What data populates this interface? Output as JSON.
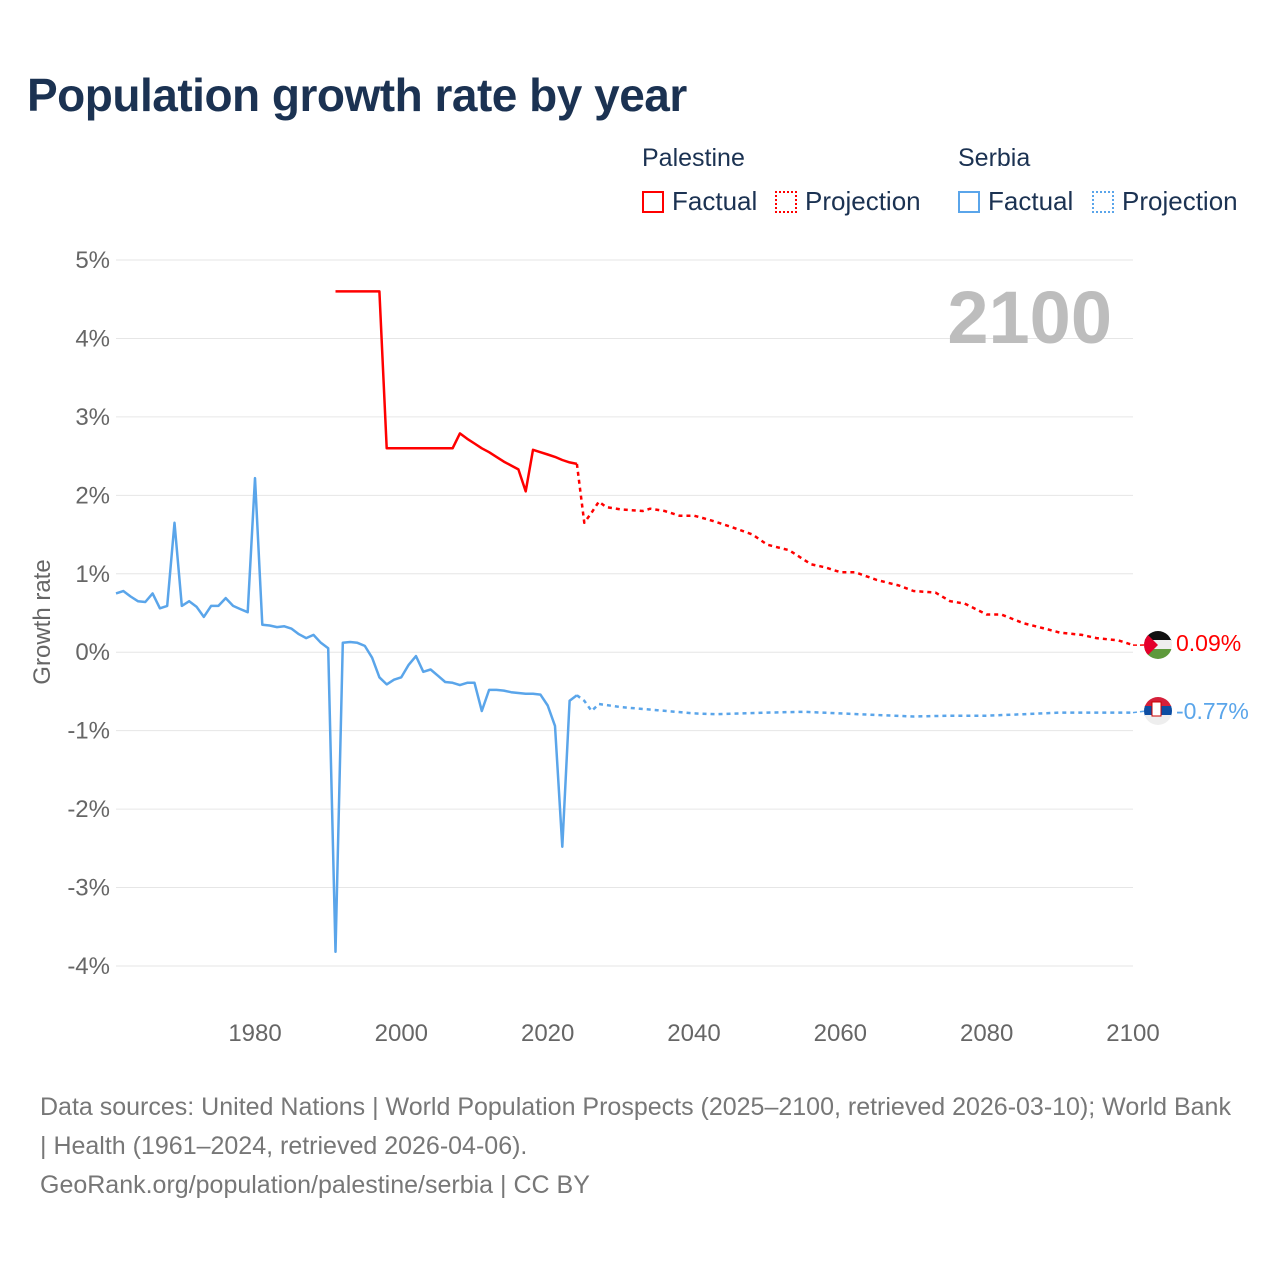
{
  "title": "Population growth rate by year",
  "legend": {
    "groups": [
      {
        "name": "Palestine",
        "factual": "Factual",
        "projection": "Projection",
        "color": "#ff0000"
      },
      {
        "name": "Serbia",
        "factual": "Factual",
        "projection": "Projection",
        "color": "#5aa5ea"
      }
    ]
  },
  "year_watermark": "2100",
  "end_labels": {
    "palestine": "0.09%",
    "serbia": "-0.77%"
  },
  "footer": {
    "sources": "Data sources: United Nations | World Population Prospects (2025–2100, retrieved 2026-03-10); World Bank | Health (1961–2024, retrieved 2026-04-06).",
    "credit": "GeoRank.org/population/palestine/serbia | CC BY"
  },
  "chart_data": {
    "type": "line",
    "title": "Population growth rate by year",
    "xlabel": "",
    "ylabel": "Growth rate",
    "xlim": [
      1961,
      2100
    ],
    "ylim": [
      -4.5,
      5
    ],
    "x_ticks": [
      1980,
      2000,
      2020,
      2040,
      2060,
      2080,
      2100
    ],
    "y_ticks": [
      5,
      4,
      3,
      2,
      1,
      0,
      -1,
      -2,
      -3,
      -4
    ],
    "y_tick_labels": [
      "5%",
      "4%",
      "3%",
      "2%",
      "1%",
      "0%",
      "-1%",
      "-2%",
      "-3%",
      "-4%"
    ],
    "grid": true,
    "legend_position": "top-right",
    "series": [
      {
        "name": "Palestine Factual",
        "color": "#ff0000",
        "style": "solid",
        "x": [
          1991,
          1992,
          1993,
          1994,
          1995,
          1996,
          1997,
          1998,
          1999,
          2000,
          2001,
          2002,
          2003,
          2004,
          2005,
          2006,
          2007,
          2008,
          2009,
          2010,
          2011,
          2012,
          2013,
          2014,
          2015,
          2016,
          2017,
          2018,
          2019,
          2020,
          2021,
          2022,
          2023,
          2024
        ],
        "y": [
          4.6,
          4.6,
          4.6,
          4.6,
          4.6,
          4.6,
          4.6,
          2.6,
          2.6,
          2.6,
          2.6,
          2.6,
          2.6,
          2.6,
          2.6,
          2.6,
          2.6,
          2.79,
          2.72,
          2.66,
          2.6,
          2.55,
          2.49,
          2.43,
          2.38,
          2.33,
          2.05,
          2.58,
          2.55,
          2.52,
          2.49,
          2.45,
          2.42,
          2.4
        ]
      },
      {
        "name": "Palestine Projection",
        "color": "#ff0000",
        "style": "dotted",
        "x": [
          2024,
          2025,
          2026,
          2027,
          2028,
          2030,
          2033,
          2034,
          2036,
          2038,
          2040,
          2042,
          2045,
          2048,
          2050,
          2053,
          2056,
          2058,
          2060,
          2062,
          2065,
          2068,
          2070,
          2073,
          2075,
          2077,
          2080,
          2082,
          2085,
          2088,
          2090,
          2093,
          2095,
          2098,
          2100
        ],
        "y": [
          2.4,
          1.65,
          1.78,
          1.92,
          1.85,
          1.82,
          1.8,
          1.83,
          1.8,
          1.74,
          1.74,
          1.69,
          1.6,
          1.5,
          1.37,
          1.3,
          1.12,
          1.08,
          1.02,
          1.02,
          0.92,
          0.85,
          0.78,
          0.76,
          0.65,
          0.62,
          0.48,
          0.48,
          0.37,
          0.3,
          0.25,
          0.22,
          0.18,
          0.15,
          0.09
        ]
      },
      {
        "name": "Serbia Factual",
        "color": "#5aa5ea",
        "style": "solid",
        "x": [
          1961,
          1962,
          1963,
          1964,
          1965,
          1966,
          1967,
          1968,
          1969,
          1970,
          1971,
          1972,
          1973,
          1974,
          1975,
          1976,
          1977,
          1978,
          1979,
          1980,
          1981,
          1982,
          1983,
          1984,
          1985,
          1986,
          1987,
          1988,
          1989,
          1990,
          1991,
          1992,
          1993,
          1994,
          1995,
          1996,
          1997,
          1998,
          1999,
          2000,
          2001,
          2002,
          2003,
          2004,
          2005,
          2006,
          2007,
          2008,
          2009,
          2010,
          2011,
          2012,
          2013,
          2014,
          2015,
          2016,
          2017,
          2018,
          2019,
          2020,
          2021,
          2022,
          2023,
          2024
        ],
        "y": [
          0.75,
          0.78,
          0.71,
          0.65,
          0.64,
          0.75,
          0.56,
          0.59,
          1.65,
          0.59,
          0.65,
          0.58,
          0.45,
          0.59,
          0.59,
          0.69,
          0.59,
          0.55,
          0.51,
          2.22,
          0.35,
          0.34,
          0.32,
          0.33,
          0.3,
          0.23,
          0.18,
          0.22,
          0.12,
          0.05,
          -3.82,
          0.12,
          0.13,
          0.12,
          0.08,
          -0.07,
          -0.32,
          -0.41,
          -0.35,
          -0.32,
          -0.16,
          -0.05,
          -0.25,
          -0.22,
          -0.3,
          -0.38,
          -0.39,
          -0.42,
          -0.39,
          -0.39,
          -0.75,
          -0.48,
          -0.48,
          -0.49,
          -0.51,
          -0.52,
          -0.53,
          -0.53,
          -0.54,
          -0.68,
          -0.94,
          -2.48,
          -0.62,
          -0.55
        ]
      },
      {
        "name": "Serbia Projection",
        "color": "#5aa5ea",
        "style": "dotted",
        "x": [
          2024,
          2025,
          2026,
          2027,
          2030,
          2035,
          2040,
          2043,
          2050,
          2055,
          2060,
          2065,
          2070,
          2075,
          2080,
          2085,
          2090,
          2095,
          2100
        ],
        "y": [
          -0.55,
          -0.62,
          -0.75,
          -0.66,
          -0.7,
          -0.74,
          -0.78,
          -0.79,
          -0.77,
          -0.76,
          -0.78,
          -0.8,
          -0.82,
          -0.81,
          -0.81,
          -0.79,
          -0.77,
          -0.77,
          -0.77
        ]
      }
    ]
  }
}
